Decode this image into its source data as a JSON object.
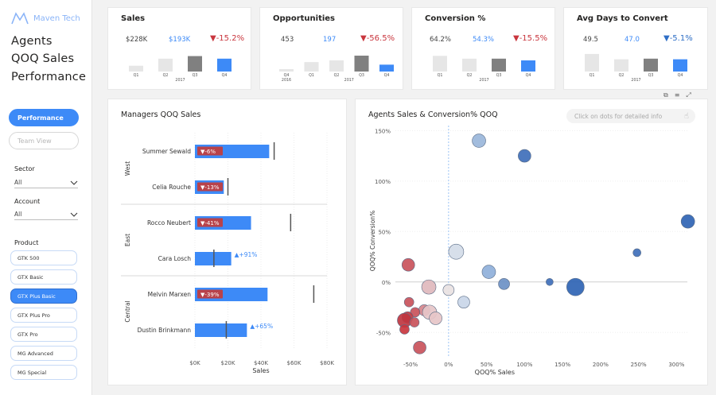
{
  "sidebar": {
    "brand": "Maven Tech",
    "nav": [
      "Agents",
      "QOQ Sales",
      "Performance"
    ],
    "buttons": [
      {
        "label": "Performance",
        "active": true
      },
      {
        "label": "Team View",
        "active": false
      }
    ],
    "filters": [
      {
        "label": "Sector",
        "value": "All"
      },
      {
        "label": "Account",
        "value": "All"
      }
    ],
    "product_label": "Product",
    "products": [
      {
        "label": "GTK 500",
        "selected": false
      },
      {
        "label": "GTX Basic",
        "selected": false
      },
      {
        "label": "GTX Plus Basic",
        "selected": true
      },
      {
        "label": "GTX Plus Pro",
        "selected": false
      },
      {
        "label": "GTX Pro",
        "selected": false
      },
      {
        "label": "MG Advanced",
        "selected": false
      },
      {
        "label": "MG Special",
        "selected": false
      }
    ]
  },
  "kpis": [
    {
      "title": "Sales",
      "prev": "$228K",
      "current": "$193K",
      "change": "▼-15.2%",
      "dir": "down",
      "quarters": [
        "Q1",
        "Q2",
        "Q3",
        "Q4"
      ],
      "year_labels": [
        "",
        "2017",
        "",
        ""
      ],
      "bars": [
        {
          "v": 0.27,
          "c": "#e6e6e6"
        },
        {
          "v": 0.6,
          "c": "#e6e6e6"
        },
        {
          "v": 0.72,
          "c": "#808080"
        },
        {
          "v": 0.6,
          "c": "#3d8af7"
        }
      ]
    },
    {
      "title": "Opportunities",
      "prev": "453",
      "current": "197",
      "change": "▼-56.5%",
      "dir": "down",
      "quarters": [
        "Q4",
        "Q1",
        "Q2",
        "Q3",
        "Q4"
      ],
      "year_labels": [
        "2016",
        "",
        "2017",
        "",
        ""
      ],
      "bars": [
        {
          "v": 0.11,
          "c": "#e6e6e6"
        },
        {
          "v": 0.44,
          "c": "#e6e6e6"
        },
        {
          "v": 0.52,
          "c": "#e6e6e6"
        },
        {
          "v": 0.74,
          "c": "#808080"
        },
        {
          "v": 0.32,
          "c": "#3d8af7"
        }
      ]
    },
    {
      "title": "Conversion %",
      "prev": "64.2%",
      "current": "54.3%",
      "change": "▼-15.5%",
      "dir": "down",
      "quarters": [
        "Q1",
        "Q2",
        "Q3",
        "Q4"
      ],
      "year_labels": [
        "",
        "2017",
        "",
        ""
      ],
      "bars": [
        {
          "v": 0.73,
          "c": "#e6e6e6"
        },
        {
          "v": 0.6,
          "c": "#e6e6e6"
        },
        {
          "v": 0.6,
          "c": "#808080"
        },
        {
          "v": 0.52,
          "c": "#3d8af7"
        }
      ]
    },
    {
      "title": "Avg Days to Convert",
      "prev": "49.5",
      "current": "47.0",
      "change": "▼-5.1%",
      "dir": "up",
      "quarters": [
        "Q1",
        "Q2",
        "Q3",
        "Q4"
      ],
      "year_labels": [
        "",
        "2017",
        "",
        ""
      ],
      "bars": [
        {
          "v": 0.82,
          "c": "#e6e6e6"
        },
        {
          "v": 0.57,
          "c": "#e6e6e6"
        },
        {
          "v": 0.6,
          "c": "#808080"
        },
        {
          "v": 0.57,
          "c": "#3d8af7"
        }
      ]
    }
  ],
  "managers_chart": {
    "title": "Managers QOQ Sales",
    "xlabel": "Sales",
    "ticks": [
      "$0K",
      "$20K",
      "$40K",
      "$60K",
      "$80K"
    ],
    "xmax": 80,
    "groups": [
      {
        "name": "West",
        "rows": [
          {
            "name": "Summer Sewald",
            "sales": 45,
            "prev": 48,
            "change": "▼-6%",
            "dir": "down"
          },
          {
            "name": "Celia Rouche",
            "sales": 17.5,
            "prev": 20,
            "change": "▼-13%",
            "dir": "down"
          }
        ]
      },
      {
        "name": "East",
        "rows": [
          {
            "name": "Rocco Neubert",
            "sales": 34,
            "prev": 58,
            "change": "▼-41%",
            "dir": "down"
          },
          {
            "name": "Cara Losch",
            "sales": 22,
            "prev": 11.5,
            "change": "▲+91%",
            "dir": "up"
          }
        ]
      },
      {
        "name": "Central",
        "rows": [
          {
            "name": "Melvin Marxen",
            "sales": 44,
            "prev": 72,
            "change": "▼-39%",
            "dir": "down"
          },
          {
            "name": "Dustin Brinkmann",
            "sales": 31.5,
            "prev": 19,
            "change": "▲+65%",
            "dir": "up"
          }
        ]
      }
    ]
  },
  "scatter_chart": {
    "title": "Agents Sales & Conversion% QOQ",
    "hint": "Click on dots for detailed info",
    "xlabel": "QOQ% Sales",
    "ylabel": "QOQ% Conversion%",
    "xticks": [
      "-50%",
      "0%",
      "50%",
      "100%",
      "150%",
      "200%",
      "250%",
      "300%"
    ],
    "yticks": [
      "150%",
      "100%",
      "50%",
      "0%",
      "-50%"
    ],
    "points": [
      {
        "x": 40,
        "y": 140,
        "r": 8.5,
        "c": "#9ab6da"
      },
      {
        "x": 100,
        "y": 125,
        "r": 8,
        "c": "#3f6fba"
      },
      {
        "x": 315,
        "y": 60,
        "r": 8.5,
        "c": "#2f64b4"
      },
      {
        "x": 248,
        "y": 29,
        "r": 5,
        "c": "#3f6fba"
      },
      {
        "x": 10,
        "y": 30,
        "r": 9.5,
        "c": "#d4dce8"
      },
      {
        "x": 53,
        "y": 10,
        "r": 8.5,
        "c": "#8fb0da"
      },
      {
        "x": 73,
        "y": -2,
        "r": 7,
        "c": "#6d91c6"
      },
      {
        "x": 133,
        "y": 0,
        "r": 4.5,
        "c": "#3f6fba"
      },
      {
        "x": 167,
        "y": -5,
        "r": 11,
        "c": "#2f64b4"
      },
      {
        "x": 20,
        "y": -20,
        "r": 7.5,
        "c": "#c9d6e8"
      },
      {
        "x": 0,
        "y": -8,
        "r": 7,
        "c": "#e9e2e2"
      },
      {
        "x": -26,
        "y": -5,
        "r": 9,
        "c": "#e0b9bd"
      },
      {
        "x": -53,
        "y": 17,
        "r": 8,
        "c": "#c9525b"
      },
      {
        "x": -52,
        "y": -20,
        "r": 6,
        "c": "#c9525b"
      },
      {
        "x": -32,
        "y": -28,
        "r": 7,
        "c": "#d7868c"
      },
      {
        "x": -25,
        "y": -30,
        "r": 9,
        "c": "#e6c6c8"
      },
      {
        "x": -17,
        "y": -36,
        "r": 8,
        "c": "#e6c6c8"
      },
      {
        "x": -44,
        "y": -30,
        "r": 6,
        "c": "#c9525b"
      },
      {
        "x": -54,
        "y": -35,
        "r": 7,
        "c": "#c9363e"
      },
      {
        "x": -58,
        "y": -38,
        "r": 9,
        "c": "#bf3640"
      },
      {
        "x": -45,
        "y": -40,
        "r": 6,
        "c": "#c9525b"
      },
      {
        "x": -58,
        "y": -47,
        "r": 6,
        "c": "#c9363e"
      },
      {
        "x": -38,
        "y": -65,
        "r": 8,
        "c": "#c9525b"
      }
    ]
  }
}
